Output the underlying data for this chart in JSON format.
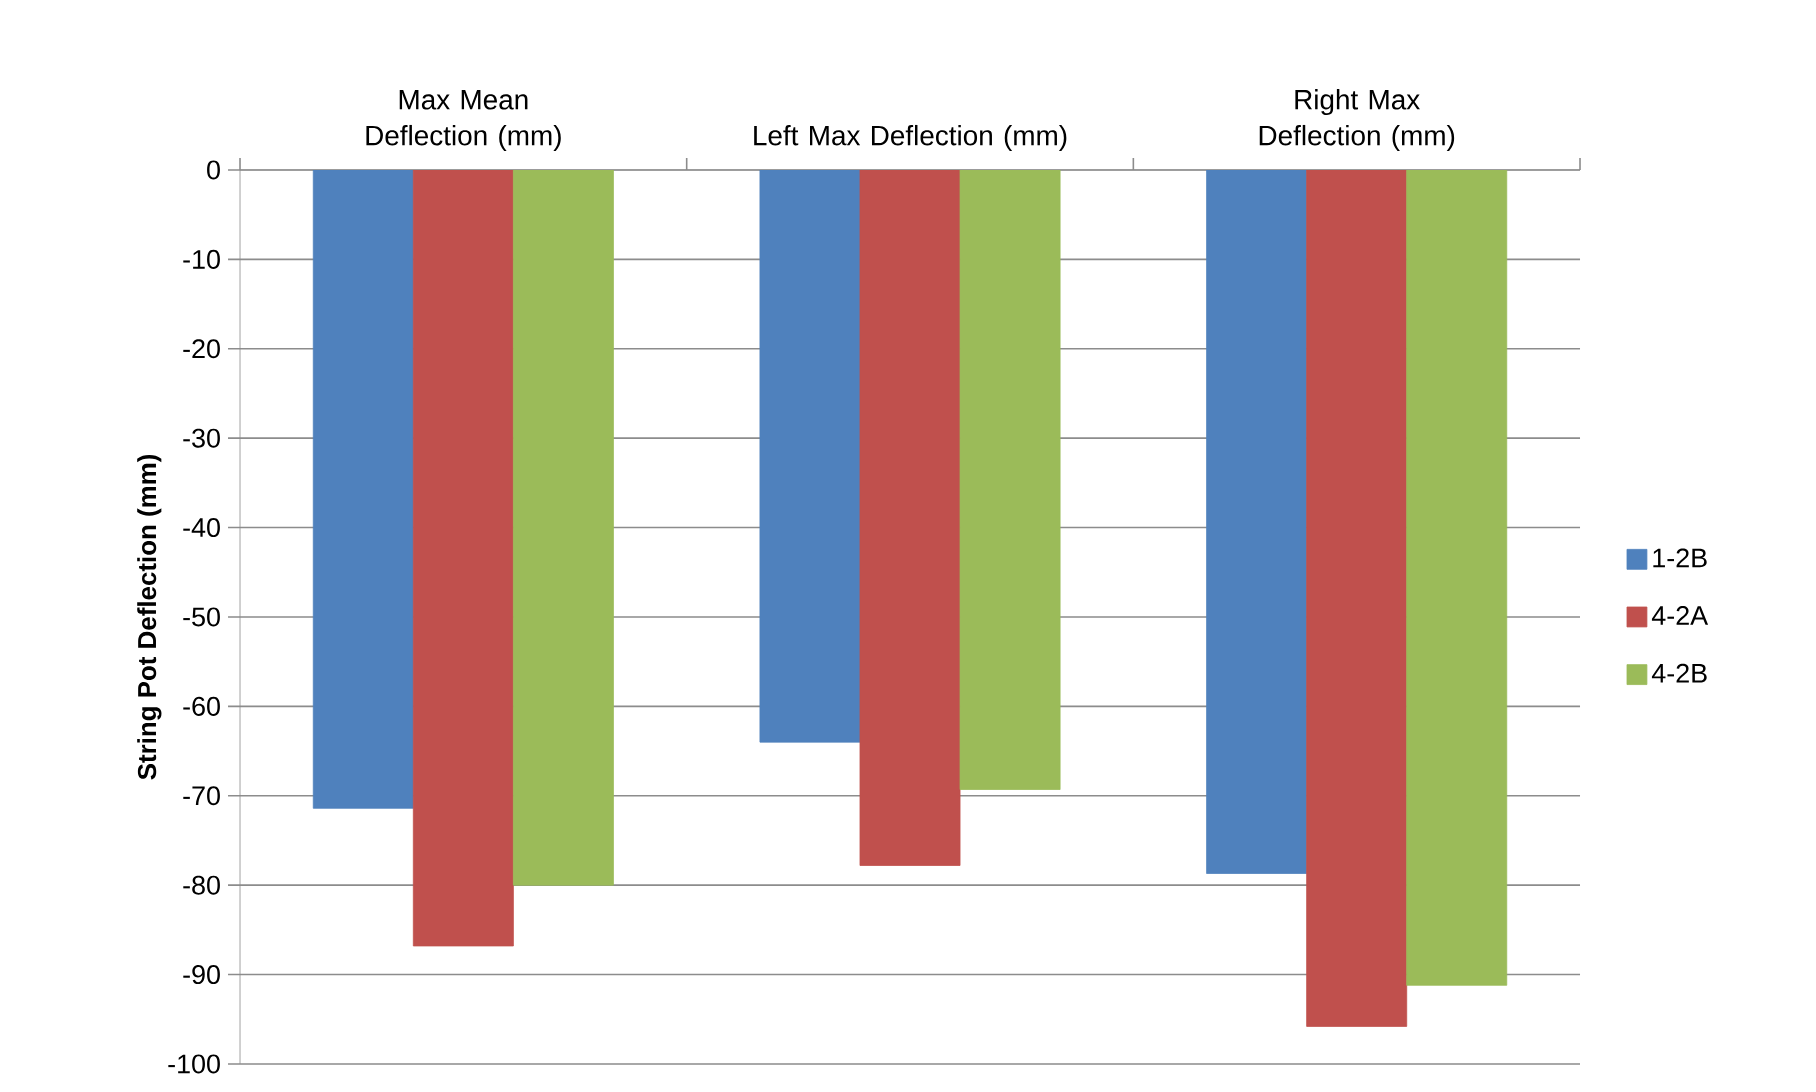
{
  "chart_data": {
    "type": "bar",
    "ylabel": "String Pot Deflection (mm)",
    "categories": [
      "Max Mean Deflection (mm)",
      "Left Max Deflection (mm)",
      "Right Max Deflection (mm)"
    ],
    "series": [
      {
        "name": "1-2B",
        "color": "#4f81bd",
        "values": [
          -71.4,
          -64,
          -78.7
        ]
      },
      {
        "name": "4-2A",
        "color": "#c0504d",
        "values": [
          -86.8,
          -77.8,
          -95.8
        ]
      },
      {
        "name": "4-2B",
        "color": "#9bbb59",
        "values": [
          -80,
          -69.3,
          -91.2
        ]
      }
    ],
    "ylim": [
      -100,
      0
    ],
    "yticks": [
      -100,
      -90,
      -80,
      -70,
      -60,
      -50,
      -40,
      -30,
      -20,
      -10,
      0
    ],
    "grid": "y",
    "legend": "right"
  }
}
